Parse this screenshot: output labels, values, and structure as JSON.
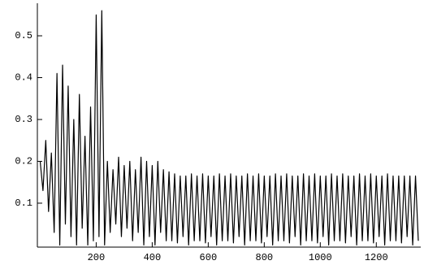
{
  "chart_data": {
    "type": "line",
    "color": "#000000",
    "x": [
      0,
      10,
      20,
      30,
      40,
      50,
      60,
      70,
      80,
      90,
      100,
      110,
      120,
      130,
      140,
      150,
      160,
      170,
      180,
      190,
      200,
      210,
      220,
      230,
      240,
      250,
      260,
      270,
      280,
      290,
      300,
      310,
      320,
      330,
      340,
      350,
      360,
      370,
      380,
      390,
      400,
      410,
      420,
      430,
      440,
      450,
      460,
      470,
      480,
      490,
      500,
      510,
      520,
      530,
      540,
      550,
      560,
      570,
      580,
      590,
      600,
      610,
      620,
      630,
      640,
      650,
      660,
      670,
      680,
      690,
      700,
      710,
      720,
      730,
      740,
      750,
      760,
      770,
      780,
      790,
      800,
      810,
      820,
      830,
      840,
      850,
      860,
      870,
      880,
      890,
      900,
      910,
      920,
      930,
      940,
      950,
      960,
      970,
      980,
      990,
      1000,
      1010,
      1020,
      1030,
      1040,
      1050,
      1060,
      1070,
      1080,
      1090,
      1100,
      1110,
      1120,
      1130,
      1140,
      1150,
      1160,
      1170,
      1180,
      1190,
      1200,
      1210,
      1220,
      1230,
      1240,
      1250,
      1260,
      1270,
      1280,
      1290,
      1300,
      1310,
      1320,
      1330,
      1340,
      1350
    ],
    "values": [
      0.2,
      0.13,
      0.25,
      0.08,
      0.22,
      0.03,
      0.41,
      0.0,
      0.43,
      0.05,
      0.38,
      0.02,
      0.3,
      0.0,
      0.36,
      0.04,
      0.26,
      0.0,
      0.33,
      0.01,
      0.55,
      0.02,
      0.56,
      0.0,
      0.2,
      0.03,
      0.18,
      0.05,
      0.21,
      0.02,
      0.19,
      0.04,
      0.2,
      0.01,
      0.18,
      0.03,
      0.21,
      0.0,
      0.2,
      0.02,
      0.19,
      0.0,
      0.2,
      0.03,
      0.18,
      0.01,
      0.175,
      0.01,
      0.17,
      0.005,
      0.165,
      0.02,
      0.165,
      0.0,
      0.17,
      0.01,
      0.165,
      0.01,
      0.17,
      0.005,
      0.165,
      0.02,
      0.165,
      0.0,
      0.17,
      0.01,
      0.165,
      0.01,
      0.17,
      0.005,
      0.165,
      0.02,
      0.165,
      0.0,
      0.17,
      0.01,
      0.165,
      0.01,
      0.17,
      0.005,
      0.165,
      0.02,
      0.165,
      0.0,
      0.17,
      0.01,
      0.165,
      0.01,
      0.17,
      0.005,
      0.165,
      0.02,
      0.165,
      0.0,
      0.17,
      0.01,
      0.165,
      0.01,
      0.17,
      0.005,
      0.165,
      0.02,
      0.165,
      0.0,
      0.17,
      0.01,
      0.165,
      0.01,
      0.17,
      0.005,
      0.165,
      0.02,
      0.165,
      0.0,
      0.17,
      0.01,
      0.165,
      0.01,
      0.17,
      0.005,
      0.165,
      0.02,
      0.165,
      0.0,
      0.17,
      0.01,
      0.165,
      0.01,
      0.165,
      0.005,
      0.165,
      0.02,
      0.165,
      0.0,
      0.165,
      0.01
    ],
    "xlim": [
      -10,
      1350
    ],
    "ylim": [
      -0.005,
      0.57
    ],
    "xticks": [
      200,
      400,
      600,
      800,
      1000,
      1200
    ],
    "yticks": [
      0.1,
      0.2,
      0.3,
      0.4,
      0.5
    ]
  }
}
